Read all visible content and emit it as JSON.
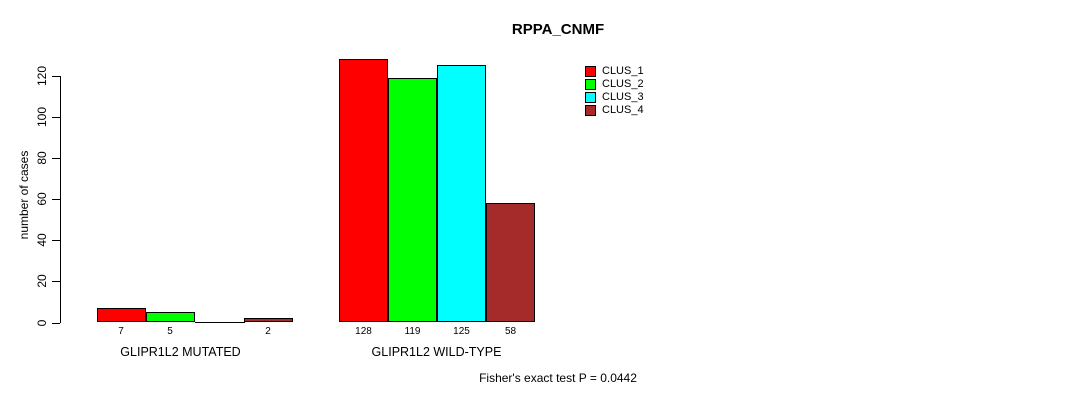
{
  "title": "RPPA_CNMF",
  "footer": "Fisher's exact test P = 0.0442",
  "chart_data": {
    "type": "bar",
    "title": "RPPA_CNMF",
    "xlabel": "",
    "ylabel": "number of cases",
    "categories": [
      "GLIPR1L2 MUTATED",
      "GLIPR1L2 WILD-TYPE"
    ],
    "series": [
      {
        "name": "CLUS_1",
        "color": "#FF0000",
        "values": [
          7,
          128
        ]
      },
      {
        "name": "CLUS_2",
        "color": "#00FF00",
        "values": [
          5,
          119
        ]
      },
      {
        "name": "CLUS_3",
        "color": "#00FFFF",
        "values": [
          0,
          125
        ]
      },
      {
        "name": "CLUS_4",
        "color": "#A52A2A",
        "values": [
          2,
          58
        ]
      }
    ],
    "yticks": [
      0,
      20,
      40,
      60,
      80,
      100,
      120
    ],
    "ylim": [
      0,
      130
    ],
    "grid": false,
    "legend_position": "top-right",
    "bar_value_labels_shown": true,
    "zero_value_labels_hidden": true,
    "annotation": "Fisher's exact test P = 0.0442"
  }
}
